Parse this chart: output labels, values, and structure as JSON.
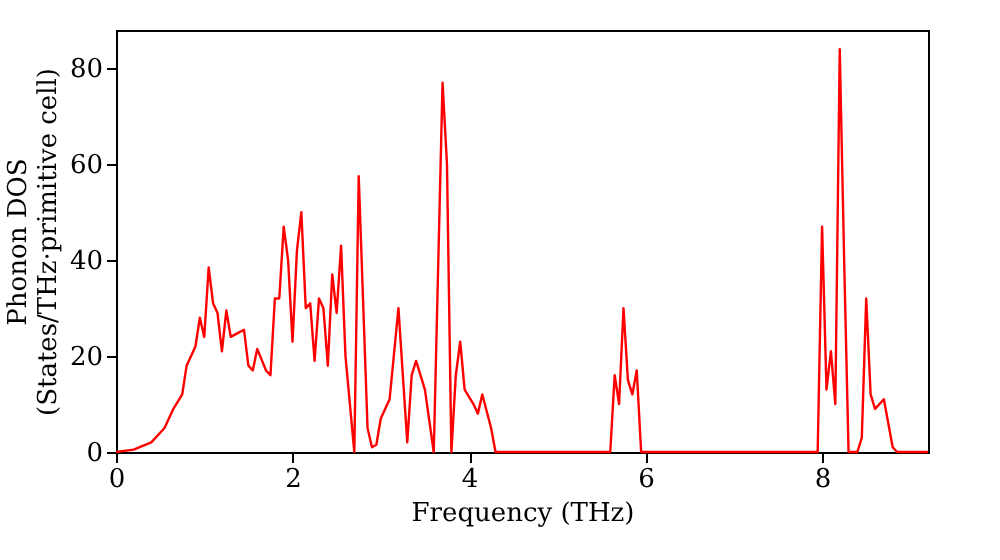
{
  "chart_data": {
    "type": "line",
    "xlabel": "Frequency (THz)",
    "ylabel": "Phonon DOS\n(States/THz·primitive cell)",
    "xlim": [
      0,
      9.2
    ],
    "ylim": [
      0,
      88
    ],
    "xticks": [
      0,
      2,
      4,
      6,
      8
    ],
    "yticks": [
      0,
      20,
      40,
      60,
      80
    ],
    "grid": false,
    "marker": "none",
    "line_style": "solid",
    "x": [
      0,
      0.2,
      0.4,
      0.55,
      0.65,
      0.75,
      0.8,
      0.9,
      0.95,
      1.0,
      1.05,
      1.1,
      1.15,
      1.2,
      1.25,
      1.3,
      1.4,
      1.45,
      1.5,
      1.55,
      1.6,
      1.7,
      1.75,
      1.8,
      1.85,
      1.9,
      1.95,
      2.0,
      2.05,
      2.1,
      2.15,
      2.2,
      2.25,
      2.3,
      2.35,
      2.4,
      2.45,
      2.5,
      2.55,
      2.6,
      2.7,
      2.75,
      2.85,
      2.9,
      2.95,
      3.0,
      3.1,
      3.2,
      3.3,
      3.35,
      3.4,
      3.5,
      3.6,
      3.7,
      3.75,
      3.8,
      3.85,
      3.9,
      3.95,
      4.05,
      4.1,
      4.15,
      4.25,
      4.3,
      5.6,
      5.65,
      5.7,
      5.75,
      5.8,
      5.85,
      5.9,
      5.95,
      7.95,
      8.0,
      8.05,
      8.1,
      8.15,
      8.2,
      8.25,
      8.3,
      8.4,
      8.45,
      8.5,
      8.55,
      8.6,
      8.7,
      8.75,
      8.8,
      8.85,
      9.2
    ],
    "series": [
      {
        "color": "#ff0000",
        "values": [
          0,
          0.5,
          2,
          5,
          9,
          12,
          18,
          22,
          28,
          24,
          38.5,
          31,
          29,
          21,
          29.5,
          24,
          25,
          25.5,
          18,
          17,
          21.5,
          17,
          16,
          32,
          32,
          47,
          40,
          23,
          42,
          50,
          30,
          31,
          19,
          32,
          30,
          18,
          37,
          29,
          43,
          20,
          0,
          57.5,
          5,
          1,
          1.5,
          7,
          11,
          30,
          2,
          16,
          19,
          13,
          0,
          77,
          60,
          0,
          16,
          23,
          13,
          10,
          8,
          12,
          5,
          0,
          0,
          16,
          10,
          30,
          15,
          12,
          17,
          0,
          0,
          47,
          13,
          21,
          10,
          84,
          40,
          0,
          0,
          3,
          32,
          12,
          9,
          11,
          6,
          1,
          0,
          0
        ]
      }
    ]
  }
}
